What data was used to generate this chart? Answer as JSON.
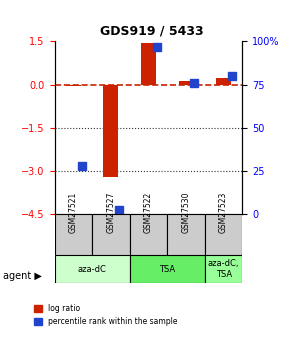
{
  "title": "GDS919 / 5433",
  "samples": [
    "GSM27521",
    "GSM27527",
    "GSM27522",
    "GSM27530",
    "GSM27523"
  ],
  "log_ratio": [
    -0.05,
    -3.2,
    1.45,
    0.12,
    0.22
  ],
  "percentile_rank": [
    28,
    2,
    97,
    76,
    80
  ],
  "ylim_left": [
    -4.5,
    1.5
  ],
  "ylim_right": [
    0,
    100
  ],
  "left_ticks": [
    1.5,
    0,
    -1.5,
    -3,
    -4.5
  ],
  "right_ticks": [
    100,
    75,
    50,
    25,
    0
  ],
  "agent_groups": [
    {
      "label": "aza-dC",
      "samples": [
        "GSM27521",
        "GSM27527"
      ],
      "color": "#ccffcc"
    },
    {
      "label": "TSA",
      "samples": [
        "GSM27522",
        "GSM27530"
      ],
      "color": "#66ee66"
    },
    {
      "label": "aza-dC,\nTSA",
      "samples": [
        "GSM27523"
      ],
      "color": "#99ff99"
    }
  ],
  "bar_color_red": "#cc2200",
  "bar_color_blue": "#2244cc",
  "ref_line_color": "#cc2200",
  "dotted_line_color": "#333333",
  "bar_width": 0.4,
  "percentile_scale_factor": 0.06
}
